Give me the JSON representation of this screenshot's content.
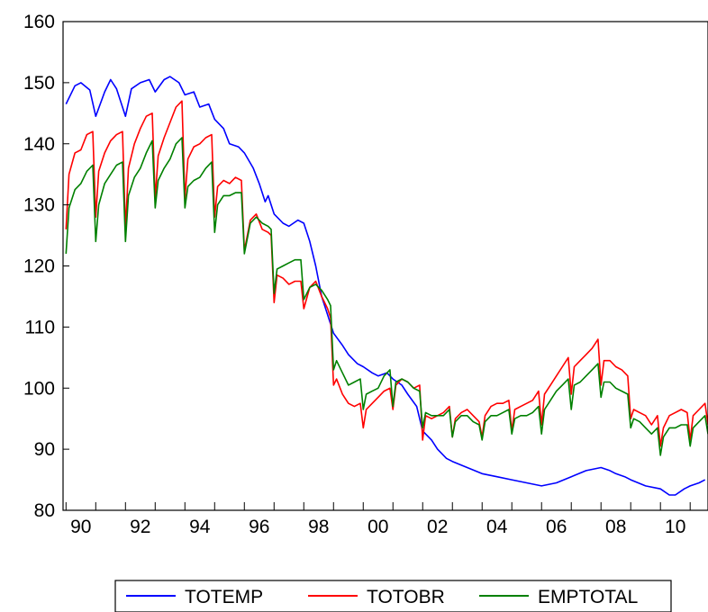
{
  "chart_data": {
    "type": "line",
    "x_unit": "year",
    "xlim": [
      1989.9,
      2011.6
    ],
    "ylim": [
      80,
      160
    ],
    "grid": false,
    "legend_placement": "bottom-center",
    "xlabel": "",
    "ylabel": "",
    "title": "",
    "y_ticks": [
      80,
      90,
      100,
      110,
      120,
      130,
      140,
      150,
      160
    ],
    "x_tick_labels": [
      {
        "year": 1990,
        "label": "90"
      },
      {
        "year": 1992,
        "label": "92"
      },
      {
        "year": 1994,
        "label": "94"
      },
      {
        "year": 1996,
        "label": "96"
      },
      {
        "year": 1998,
        "label": "98"
      },
      {
        "year": 2000,
        "label": "00"
      },
      {
        "year": 2002,
        "label": "02"
      },
      {
        "year": 2004,
        "label": "04"
      },
      {
        "year": 2006,
        "label": "06"
      },
      {
        "year": 2008,
        "label": "08"
      },
      {
        "year": 2010,
        "label": "10"
      }
    ],
    "series": [
      {
        "name": "TOTEMP",
        "color": "#0000ff",
        "x": [
          1990.0,
          1990.3,
          1990.5,
          1990.8,
          1991.0,
          1991.3,
          1991.5,
          1991.7,
          1992.0,
          1992.2,
          1992.5,
          1992.8,
          1993.0,
          1993.3,
          1993.5,
          1993.8,
          1994.0,
          1994.3,
          1994.5,
          1994.8,
          1995.0,
          1995.3,
          1995.5,
          1995.8,
          1996.0,
          1996.3,
          1996.5,
          1996.7,
          1996.8,
          1997.0,
          1997.3,
          1997.5,
          1997.8,
          1998.0,
          1998.2,
          1998.4,
          1998.6,
          1998.8,
          1999.0,
          1999.3,
          1999.5,
          1999.8,
          2000.0,
          2000.3,
          2000.5,
          2000.8,
          2001.0,
          2001.3,
          2001.5,
          2001.8,
          2002.0,
          2002.3,
          2002.5,
          2002.8,
          2003.0,
          2003.5,
          2004.0,
          2004.5,
          2005.0,
          2005.5,
          2006.0,
          2006.5,
          2007.0,
          2007.5,
          2008.0,
          2008.3,
          2008.5,
          2008.8,
          2009.0,
          2009.5,
          2010.0,
          2010.3,
          2010.5,
          2010.8,
          2011.0,
          2011.3,
          2011.5
        ],
        "values": [
          146.5,
          149.5,
          150.0,
          148.8,
          144.5,
          148.5,
          150.5,
          149.0,
          144.5,
          149.0,
          150.0,
          150.5,
          148.5,
          150.5,
          151.0,
          150.0,
          148.0,
          148.5,
          146.0,
          146.5,
          144.0,
          142.5,
          140.0,
          139.5,
          138.5,
          136.0,
          133.5,
          130.5,
          131.5,
          128.5,
          127.0,
          126.5,
          127.5,
          127.0,
          124.0,
          120.0,
          115.0,
          112.0,
          109.0,
          107.0,
          105.5,
          104.0,
          103.5,
          102.5,
          102.0,
          102.5,
          101.5,
          100.5,
          99.0,
          97.0,
          93.0,
          91.5,
          90.0,
          88.5,
          88.0,
          87.0,
          86.0,
          85.5,
          85.0,
          84.5,
          84.0,
          84.5,
          85.5,
          86.5,
          87.0,
          86.5,
          86.0,
          85.5,
          85.0,
          84.0,
          83.5,
          82.5,
          82.5,
          83.5,
          84.0,
          84.5,
          85.0
        ]
      },
      {
        "name": "TOTOBR",
        "color": "#ff0000",
        "x": [
          1990.0,
          1990.1,
          1990.3,
          1990.5,
          1990.7,
          1990.9,
          1991.0,
          1991.1,
          1991.3,
          1991.5,
          1991.7,
          1991.9,
          1992.0,
          1992.1,
          1992.3,
          1992.5,
          1992.7,
          1992.9,
          1993.0,
          1993.1,
          1993.3,
          1993.5,
          1993.7,
          1993.9,
          1994.0,
          1994.1,
          1994.3,
          1994.5,
          1994.7,
          1994.9,
          1995.0,
          1995.1,
          1995.3,
          1995.5,
          1995.7,
          1995.9,
          1996.0,
          1996.2,
          1996.4,
          1996.6,
          1996.8,
          1996.9,
          1997.0,
          1997.1,
          1997.3,
          1997.5,
          1997.7,
          1997.9,
          1998.0,
          1998.2,
          1998.4,
          1998.6,
          1998.8,
          1998.9,
          1999.0,
          1999.1,
          1999.3,
          1999.5,
          1999.7,
          1999.9,
          2000.0,
          2000.1,
          2000.3,
          2000.5,
          2000.7,
          2000.9,
          2001.0,
          2001.1,
          2001.3,
          2001.5,
          2001.7,
          2001.9,
          2002.0,
          2002.1,
          2002.3,
          2002.5,
          2002.7,
          2002.9,
          2003.0,
          2003.1,
          2003.3,
          2003.5,
          2003.7,
          2003.9,
          2004.0,
          2004.1,
          2004.3,
          2004.5,
          2004.7,
          2004.9,
          2005.0,
          2005.1,
          2005.3,
          2005.5,
          2005.7,
          2005.9,
          2006.0,
          2006.1,
          2006.3,
          2006.5,
          2006.7,
          2006.9,
          2007.0,
          2007.1,
          2007.3,
          2007.5,
          2007.7,
          2007.9,
          2008.0,
          2008.1,
          2008.3,
          2008.5,
          2008.7,
          2008.9,
          2009.0,
          2009.1,
          2009.3,
          2009.5,
          2009.7,
          2009.9,
          2010.0,
          2010.1,
          2010.3,
          2010.5,
          2010.7,
          2010.9,
          2011.0,
          2011.1,
          2011.3,
          2011.5,
          2011.6
        ],
        "values": [
          126.0,
          135.0,
          138.5,
          139.0,
          141.5,
          142.0,
          128.0,
          135.5,
          138.5,
          140.5,
          141.5,
          142.0,
          126.0,
          136.0,
          140.0,
          142.5,
          144.5,
          145.0,
          131.0,
          138.0,
          141.0,
          143.5,
          146.0,
          147.0,
          131.0,
          137.5,
          139.5,
          140.0,
          141.0,
          141.5,
          128.0,
          133.0,
          134.0,
          133.5,
          134.5,
          134.0,
          122.5,
          127.5,
          128.5,
          126.0,
          125.5,
          125.0,
          114.0,
          118.5,
          118.0,
          117.0,
          117.5,
          117.5,
          113.0,
          116.5,
          117.5,
          115.0,
          113.0,
          111.5,
          100.5,
          101.5,
          99.0,
          97.5,
          97.0,
          97.5,
          93.5,
          96.5,
          97.5,
          98.5,
          99.5,
          100.0,
          96.5,
          100.5,
          101.5,
          101.0,
          100.0,
          100.5,
          91.5,
          95.5,
          95.0,
          95.5,
          96.0,
          97.0,
          92.0,
          95.0,
          96.0,
          96.5,
          95.5,
          94.5,
          92.0,
          95.5,
          97.0,
          97.5,
          97.5,
          98.0,
          93.0,
          96.5,
          97.0,
          97.5,
          98.0,
          99.5,
          94.0,
          99.0,
          100.5,
          102.0,
          103.5,
          105.0,
          99.0,
          103.5,
          104.5,
          105.5,
          106.5,
          108.0,
          100.5,
          104.5,
          104.5,
          103.5,
          103.0,
          102.0,
          95.0,
          96.5,
          96.0,
          95.5,
          94.0,
          95.5,
          90.5,
          93.5,
          95.5,
          96.0,
          96.5,
          96.0,
          91.5,
          95.5,
          96.5,
          97.5,
          94.0
        ]
      },
      {
        "name": "EMPTOTAL",
        "color": "#008000",
        "x": [
          1990.0,
          1990.1,
          1990.3,
          1990.5,
          1990.7,
          1990.9,
          1991.0,
          1991.1,
          1991.3,
          1991.5,
          1991.7,
          1991.9,
          1992.0,
          1992.1,
          1992.3,
          1992.5,
          1992.7,
          1992.9,
          1993.0,
          1993.1,
          1993.3,
          1993.5,
          1993.7,
          1993.9,
          1994.0,
          1994.1,
          1994.3,
          1994.5,
          1994.7,
          1994.9,
          1995.0,
          1995.1,
          1995.3,
          1995.5,
          1995.7,
          1995.9,
          1996.0,
          1996.2,
          1996.4,
          1996.6,
          1996.8,
          1996.9,
          1997.0,
          1997.1,
          1997.3,
          1997.5,
          1997.7,
          1997.9,
          1998.0,
          1998.2,
          1998.4,
          1998.6,
          1998.8,
          1998.9,
          1999.0,
          1999.1,
          1999.3,
          1999.5,
          1999.7,
          1999.9,
          2000.0,
          2000.1,
          2000.3,
          2000.5,
          2000.7,
          2000.9,
          2001.0,
          2001.1,
          2001.3,
          2001.5,
          2001.7,
          2001.9,
          2002.0,
          2002.1,
          2002.3,
          2002.5,
          2002.7,
          2002.9,
          2003.0,
          2003.1,
          2003.3,
          2003.5,
          2003.7,
          2003.9,
          2004.0,
          2004.1,
          2004.3,
          2004.5,
          2004.7,
          2004.9,
          2005.0,
          2005.1,
          2005.3,
          2005.5,
          2005.7,
          2005.9,
          2006.0,
          2006.1,
          2006.3,
          2006.5,
          2006.7,
          2006.9,
          2007.0,
          2007.1,
          2007.3,
          2007.5,
          2007.7,
          2007.9,
          2008.0,
          2008.1,
          2008.3,
          2008.5,
          2008.7,
          2008.9,
          2009.0,
          2009.1,
          2009.3,
          2009.5,
          2009.7,
          2009.9,
          2010.0,
          2010.1,
          2010.3,
          2010.5,
          2010.7,
          2010.9,
          2011.0,
          2011.1,
          2011.3,
          2011.5,
          2011.6
        ],
        "values": [
          122.0,
          129.5,
          132.5,
          133.5,
          135.5,
          136.5,
          124.0,
          130.0,
          133.5,
          135.0,
          136.5,
          137.0,
          124.0,
          131.5,
          134.5,
          136.0,
          138.5,
          140.5,
          129.5,
          134.0,
          136.0,
          137.5,
          140.0,
          141.0,
          129.5,
          133.0,
          134.0,
          134.5,
          136.0,
          137.0,
          125.5,
          130.0,
          131.5,
          131.5,
          132.0,
          132.0,
          122.0,
          127.0,
          128.0,
          127.0,
          126.5,
          126.0,
          115.5,
          119.5,
          120.0,
          120.5,
          121.0,
          121.0,
          114.5,
          116.5,
          117.0,
          116.0,
          114.5,
          113.5,
          103.0,
          104.5,
          102.5,
          100.5,
          101.0,
          101.5,
          96.5,
          99.0,
          99.5,
          100.0,
          102.0,
          103.0,
          97.0,
          101.0,
          101.5,
          101.0,
          100.0,
          99.5,
          93.5,
          96.0,
          95.5,
          95.5,
          95.5,
          96.5,
          92.0,
          94.5,
          95.5,
          95.5,
          94.5,
          94.0,
          91.5,
          94.5,
          95.5,
          95.5,
          96.0,
          96.5,
          92.5,
          95.0,
          95.5,
          95.5,
          96.0,
          97.0,
          92.5,
          96.5,
          98.0,
          99.5,
          100.5,
          101.5,
          96.5,
          100.5,
          101.0,
          102.0,
          103.0,
          104.0,
          98.5,
          101.0,
          101.0,
          100.0,
          99.5,
          99.0,
          93.5,
          95.0,
          94.5,
          93.5,
          92.5,
          93.5,
          89.0,
          92.0,
          93.5,
          93.5,
          94.0,
          94.0,
          90.5,
          93.5,
          94.5,
          95.5,
          92.5
        ]
      }
    ]
  },
  "legend": {
    "entries": [
      {
        "label": "TOTEMP",
        "color": "#0000ff"
      },
      {
        "label": "TOTOBR",
        "color": "#ff0000"
      },
      {
        "label": "EMPTOTAL",
        "color": "#008000"
      }
    ]
  }
}
